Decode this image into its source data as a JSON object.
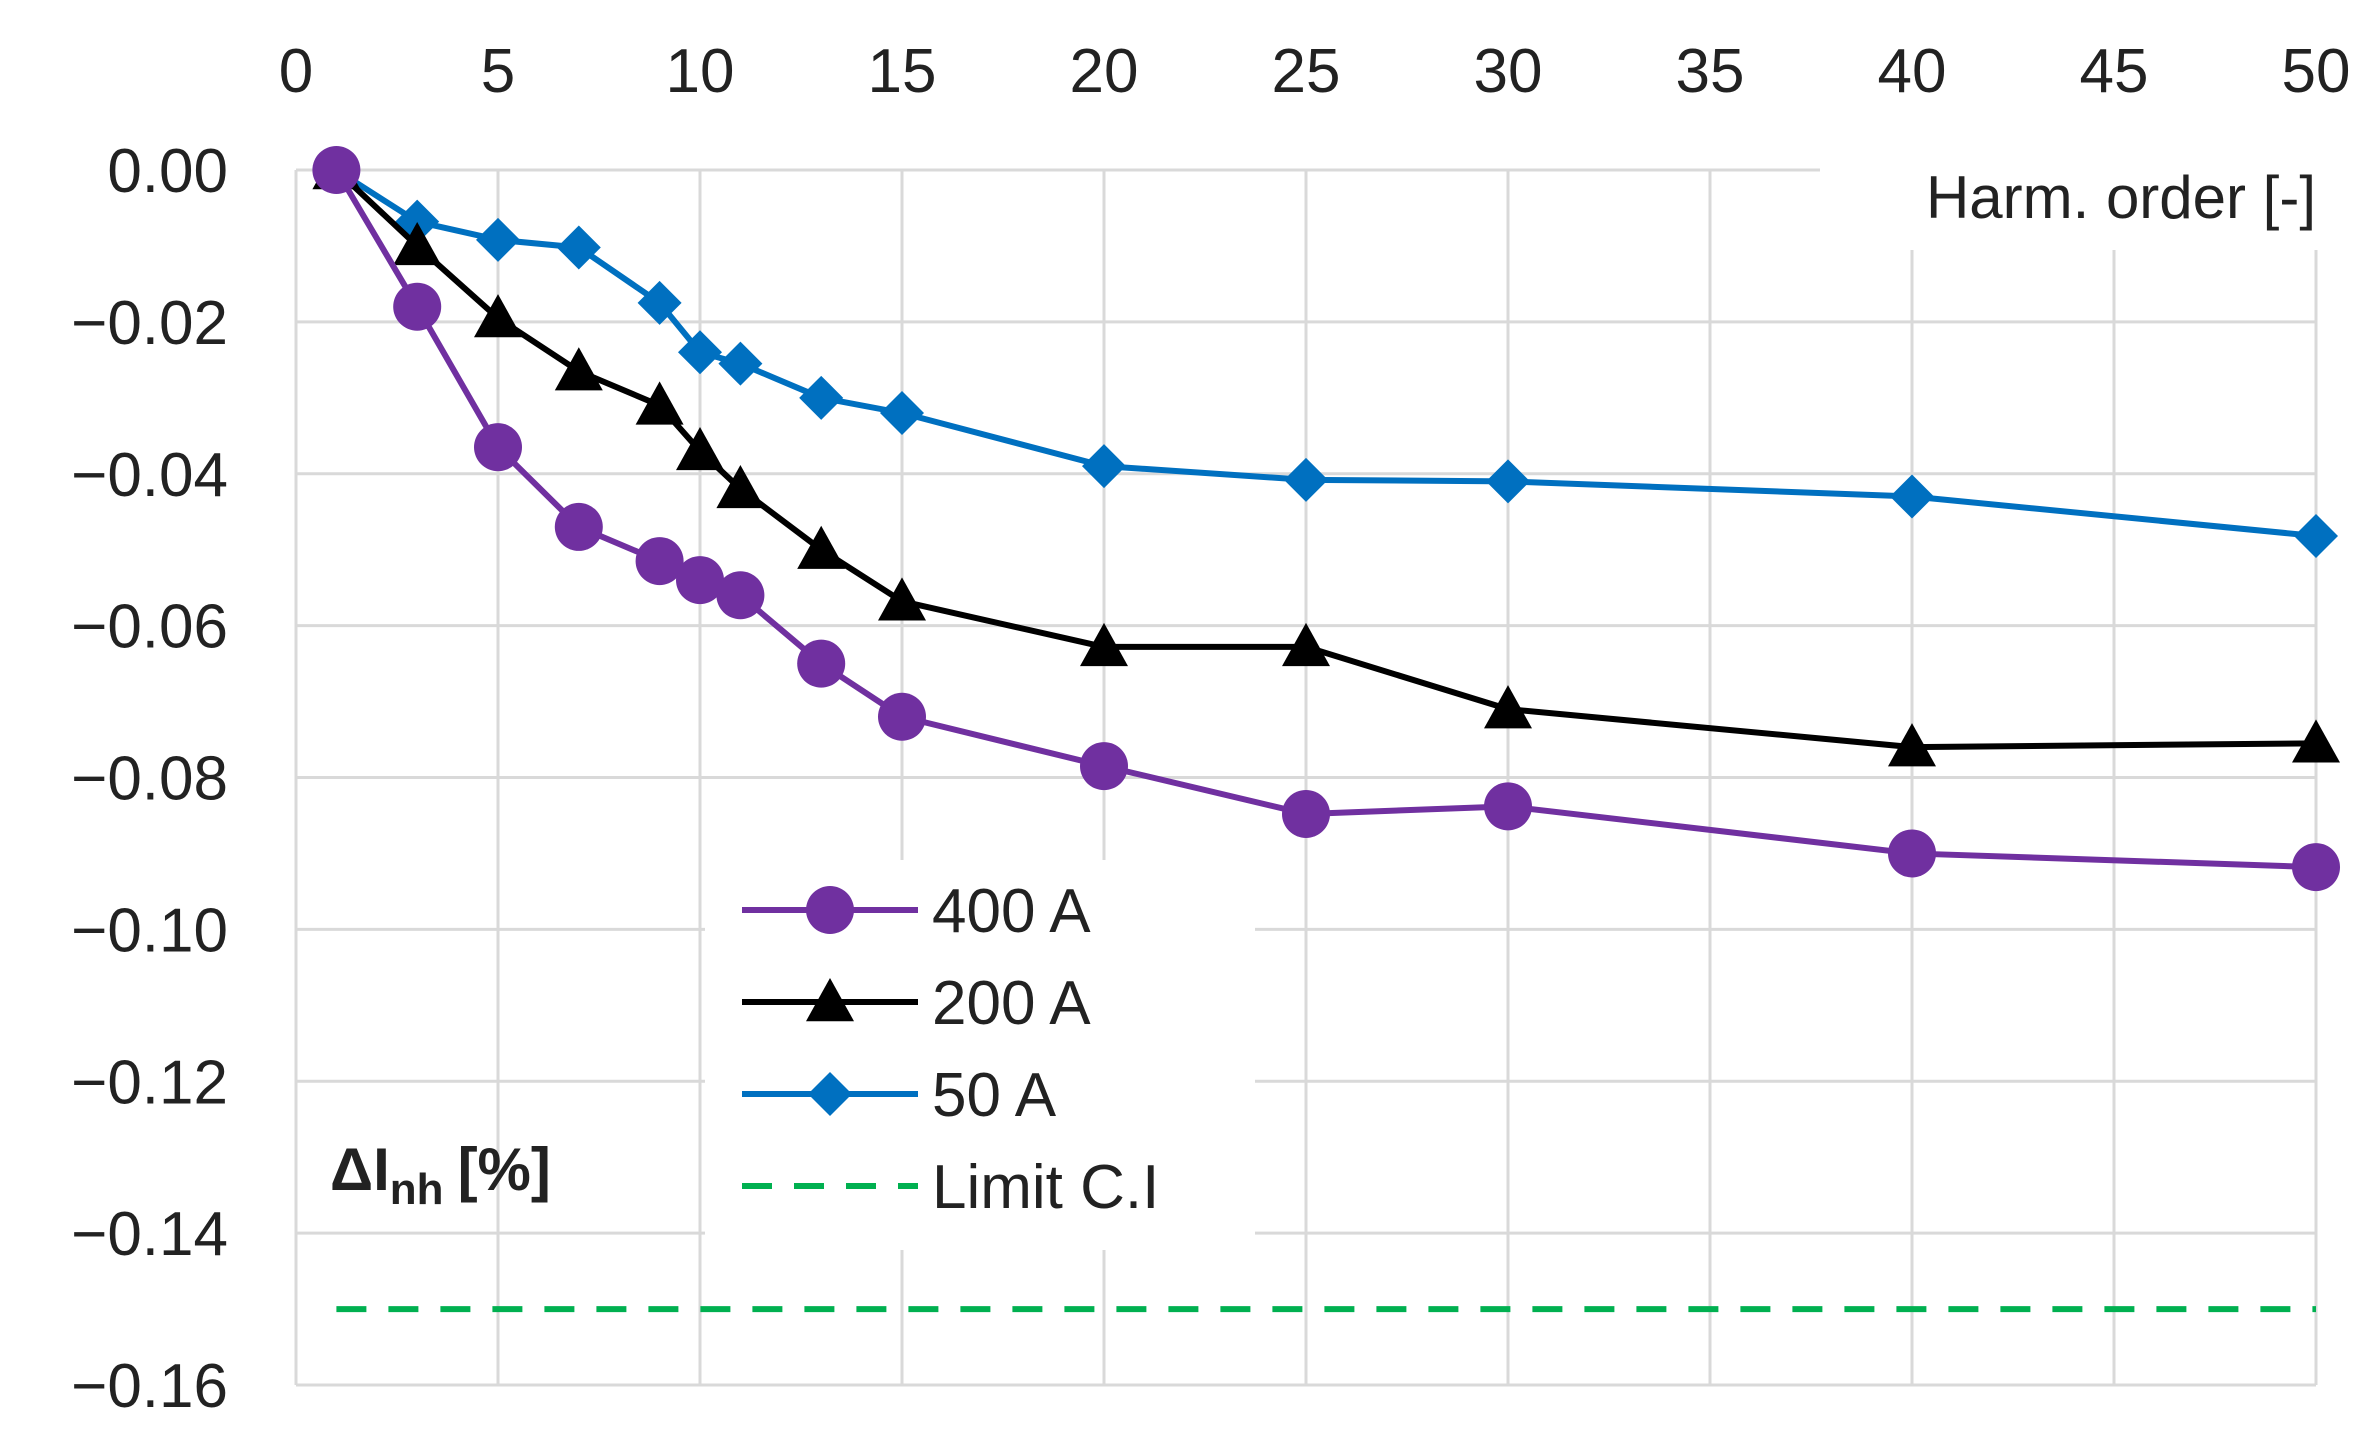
{
  "chart_data": {
    "type": "line",
    "xlabel": "Harm. order [-]",
    "ylabel": "ΔInh [%]",
    "ylabel_main": "ΔI",
    "ylabel_sub": "nh",
    "ylabel_unit": "[%]",
    "xlim": [
      0,
      50
    ],
    "ylim": [
      -0.16,
      0.0
    ],
    "x_ticks": [
      0,
      5,
      10,
      15,
      20,
      25,
      30,
      35,
      40,
      45,
      50
    ],
    "x_tick_labels": [
      "0",
      "5",
      "10",
      "15",
      "20",
      "25",
      "30",
      "35",
      "40",
      "45",
      "50"
    ],
    "y_ticks": [
      0.0,
      -0.02,
      -0.04,
      -0.06,
      -0.08,
      -0.1,
      -0.12,
      -0.14,
      -0.16
    ],
    "y_tick_labels": [
      "0.00",
      "−0.02",
      "−0.04",
      "−0.06",
      "−0.08",
      "−0.10",
      "−0.12",
      "−0.14",
      "−0.16"
    ],
    "grid": true,
    "x_axis_position": "top",
    "legend_position": "bottom-left",
    "x": [
      1,
      3,
      5,
      7,
      9,
      10,
      11,
      13,
      15,
      20,
      25,
      30,
      40,
      50
    ],
    "series": [
      {
        "name": "400 A",
        "marker": "circle",
        "color": "#7030a0",
        "values": [
          0.0,
          -0.018,
          -0.0365,
          -0.047,
          -0.0515,
          -0.054,
          -0.056,
          -0.065,
          -0.072,
          -0.0785,
          -0.0848,
          -0.0838,
          -0.09,
          -0.0918
        ]
      },
      {
        "name": "200 A",
        "marker": "triangle",
        "color": "#000000",
        "values": [
          0.0,
          -0.01,
          -0.0195,
          -0.0265,
          -0.031,
          -0.037,
          -0.042,
          -0.05,
          -0.0568,
          -0.0628,
          -0.0628,
          -0.071,
          -0.076,
          -0.0755
        ]
      },
      {
        "name": "50 A",
        "marker": "diamond",
        "color": "#0070c0",
        "values": [
          0.0,
          -0.0068,
          -0.0092,
          -0.0102,
          -0.0175,
          -0.024,
          -0.0255,
          -0.03,
          -0.032,
          -0.039,
          -0.0408,
          -0.041,
          -0.043,
          -0.0482
        ]
      }
    ],
    "reference_lines": [
      {
        "name": "Limit C.I",
        "style": "dashed",
        "color": "#00b050",
        "y": -0.15,
        "x_range": [
          1,
          50
        ]
      }
    ]
  }
}
